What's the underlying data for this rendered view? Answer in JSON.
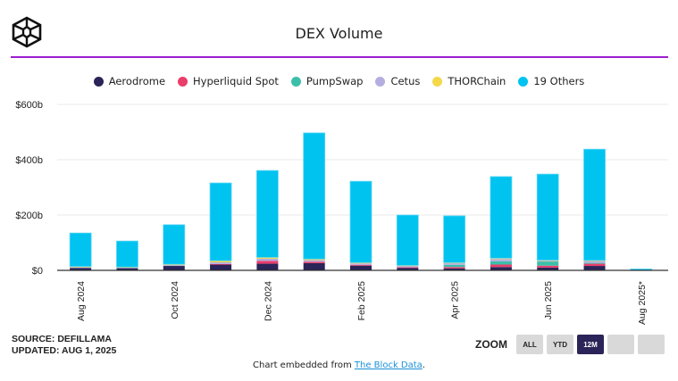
{
  "header": {
    "title": "DEX Volume",
    "accent_color": "#9b1dd1"
  },
  "legend": [
    {
      "name": "Aerodrome",
      "color": "#2a2458"
    },
    {
      "name": "Hyperliquid Spot",
      "color": "#ea3d6a"
    },
    {
      "name": "PumpSwap",
      "color": "#3bbfa9"
    },
    {
      "name": "Cetus",
      "color": "#b4aee0"
    },
    {
      "name": "THORChain",
      "color": "#f3d84a"
    },
    {
      "name": "19 Others",
      "color": "#00c3f0"
    }
  ],
  "footer": {
    "source": "SOURCE: DEFILLAMA",
    "updated": "UPDATED: AUG 1, 2025",
    "zoom_label": "ZOOM",
    "zoom_buttons": [
      {
        "label": "ALL",
        "active": false
      },
      {
        "label": "YTD",
        "active": false
      },
      {
        "label": "12M",
        "active": true
      },
      {
        "label": "",
        "active": false
      },
      {
        "label": "",
        "active": false
      }
    ],
    "embed_prefix": "Chart embedded from ",
    "embed_link": "The Block Data",
    "embed_suffix": "."
  },
  "chart_data": {
    "type": "bar",
    "stacked": true,
    "title": "DEX Volume",
    "xlabel": "",
    "ylabel": "",
    "ylim": [
      0,
      600
    ],
    "y_unit": "billions USD",
    "y_ticks": [
      {
        "value": 0,
        "label": "$0"
      },
      {
        "value": 200,
        "label": "$200b"
      },
      {
        "value": 400,
        "label": "$400b"
      },
      {
        "value": 600,
        "label": "$600b"
      }
    ],
    "grid": true,
    "legend_position": "top",
    "categories": [
      "Aug 2024",
      "Sep 2024",
      "Oct 2024",
      "Nov 2024",
      "Dec 2024",
      "Jan 2025",
      "Feb 2025",
      "Mar 2025",
      "Apr 2025",
      "May 2025",
      "Jun 2025",
      "Jul 2025",
      "Aug 2025*"
    ],
    "tick_labels": [
      "Aug 2024",
      "",
      "Oct 2024",
      "",
      "Dec 2024",
      "",
      "Feb 2025",
      "",
      "Apr 2025",
      "",
      "Jun 2025",
      "",
      "Aug 2025*"
    ],
    "series": [
      {
        "name": "Aerodrome",
        "color": "#2a2458",
        "values": [
          9,
          8,
          16,
          22,
          24,
          26,
          17,
          9,
          7,
          12,
          10,
          16,
          0
        ]
      },
      {
        "name": "Hyperliquid Spot",
        "color": "#ea3d6a",
        "values": [
          0,
          0,
          0,
          1,
          10,
          5,
          3,
          2,
          5,
          9,
          7,
          8,
          0
        ]
      },
      {
        "name": "PumpSwap",
        "color": "#3bbfa9",
        "values": [
          0,
          0,
          0,
          0,
          0,
          0,
          0,
          0,
          8,
          12,
          15,
          3,
          0
        ]
      },
      {
        "name": "Cetus",
        "color": "#b4aee0",
        "values": [
          2,
          2,
          3,
          6,
          8,
          6,
          5,
          5,
          6,
          8,
          3,
          7,
          0
        ]
      },
      {
        "name": "THORChain",
        "color": "#f3d84a",
        "values": [
          3,
          2,
          3,
          6,
          5,
          4,
          3,
          2,
          2,
          3,
          2,
          2,
          0
        ]
      },
      {
        "name": "19 Others",
        "color": "#00c3f0",
        "values": [
          121,
          94,
          143,
          281,
          314,
          456,
          294,
          182,
          169,
          295,
          311,
          402,
          5
        ]
      }
    ]
  }
}
